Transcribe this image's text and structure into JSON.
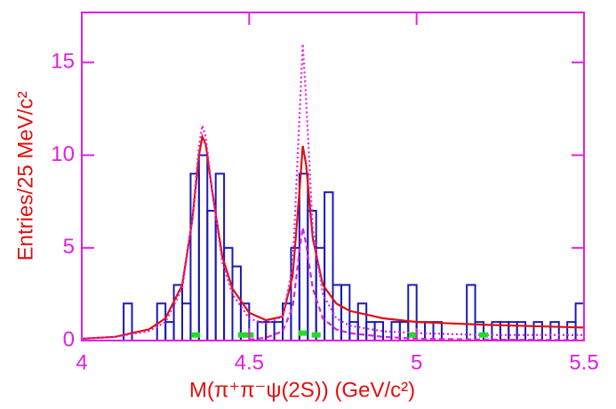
{
  "chart_data": {
    "type": "histogram",
    "xlabel": "M(π⁺π⁻ψ(2S)) (GeV/c²)",
    "ylabel": "Entries/25 MeV/c²",
    "bins": [
      4.0,
      4.025,
      4.05,
      4.075,
      4.1,
      4.125,
      4.15,
      4.175,
      4.2,
      4.225,
      4.25,
      4.275,
      4.3,
      4.325,
      4.35,
      4.375,
      4.4,
      4.425,
      4.45,
      4.475,
      4.5,
      4.525,
      4.55,
      4.575,
      4.6,
      4.625,
      4.65,
      4.675,
      4.7,
      4.725,
      4.75,
      4.775,
      4.8,
      4.825,
      4.85,
      4.875,
      4.9,
      4.925,
      4.95,
      4.975,
      5.0,
      5.025,
      5.05,
      5.075,
      5.1,
      5.125,
      5.15,
      5.175,
      5.2,
      5.225,
      5.25,
      5.275,
      5.3,
      5.325,
      5.35,
      5.375,
      5.4,
      5.425,
      5.45,
      5.475,
      5.5
    ],
    "counts": [
      0,
      0,
      0,
      0,
      0,
      2,
      0,
      0,
      0,
      2,
      1,
      3,
      2,
      9,
      10,
      7,
      9,
      5,
      4,
      2,
      0,
      1,
      1,
      1,
      2,
      5,
      9,
      7,
      5,
      8,
      3,
      3,
      1,
      2,
      1,
      1,
      0,
      1,
      1,
      3,
      1,
      1,
      1,
      0,
      0,
      0,
      3,
      1,
      0,
      1,
      1,
      1,
      1,
      0,
      1,
      0,
      1,
      0,
      1,
      2
    ],
    "color": "#1a1ab4",
    "curves": [
      {
        "color": "#e01010",
        "style": "solid",
        "x": [
          4.0,
          4.1,
          4.2,
          4.25,
          4.3,
          4.33,
          4.35,
          4.36,
          4.37,
          4.39,
          4.42,
          4.45,
          4.5,
          4.55,
          4.6,
          4.63,
          4.65,
          4.66,
          4.67,
          4.69,
          4.72,
          4.76,
          4.8,
          4.9,
          5.0,
          5.2,
          5.5
        ],
        "values": [
          0.1,
          0.2,
          0.6,
          1.2,
          3.0,
          6.5,
          10,
          11,
          10.6,
          8,
          4.5,
          2.8,
          1.5,
          1.1,
          1.3,
          3.5,
          8,
          10.5,
          9.5,
          5.5,
          3,
          2,
          1.6,
          1.2,
          1.0,
          0.85,
          0.7
        ]
      },
      {
        "color": "#e020e0",
        "style": "dotted",
        "x": [
          4.0,
          4.1,
          4.2,
          4.25,
          4.3,
          4.33,
          4.35,
          4.36,
          4.37,
          4.39,
          4.42,
          4.45,
          4.5,
          4.55,
          4.6,
          4.63,
          4.65,
          4.66,
          4.67,
          4.69,
          4.72,
          4.76,
          4.8,
          4.9,
          5.0,
          5.2,
          5.5
        ],
        "values": [
          0.1,
          0.2,
          0.5,
          1.0,
          2.8,
          6.5,
          10.5,
          11.6,
          11,
          8,
          4.2,
          2.5,
          1.2,
          0.9,
          1.3,
          4,
          12,
          16,
          13,
          6,
          2.5,
          1.2,
          0.8,
          0.5,
          0.4,
          0.3,
          0.3
        ]
      },
      {
        "color": "#e020e0",
        "style": "dashed",
        "x": [
          4.5,
          4.55,
          4.6,
          4.63,
          4.65,
          4.66,
          4.67,
          4.69,
          4.72,
          4.76,
          4.8,
          4.9,
          5.0,
          5.2,
          5.5
        ],
        "values": [
          0.05,
          0.15,
          0.5,
          1.8,
          4.8,
          6.1,
          5.2,
          2.8,
          1.2,
          0.6,
          0.4,
          0.2,
          0.1,
          0.05,
          0.02
        ]
      }
    ],
    "background_points": {
      "color": "#22dd22",
      "x": [
        4.34,
        4.48,
        4.5,
        4.66,
        4.7,
        4.99,
        5.2
      ],
      "values": [
        0.3,
        0.3,
        0.3,
        0.4,
        0.3,
        0.3,
        0.3
      ]
    },
    "xlim": [
      4,
      5.5
    ],
    "ylim": [
      0,
      17.7
    ],
    "xticks": [
      4,
      4.5,
      5,
      5.5
    ],
    "yticks": [
      0,
      5,
      10,
      15
    ],
    "axis_color": "#e020e0",
    "label_color": "#e01010"
  }
}
